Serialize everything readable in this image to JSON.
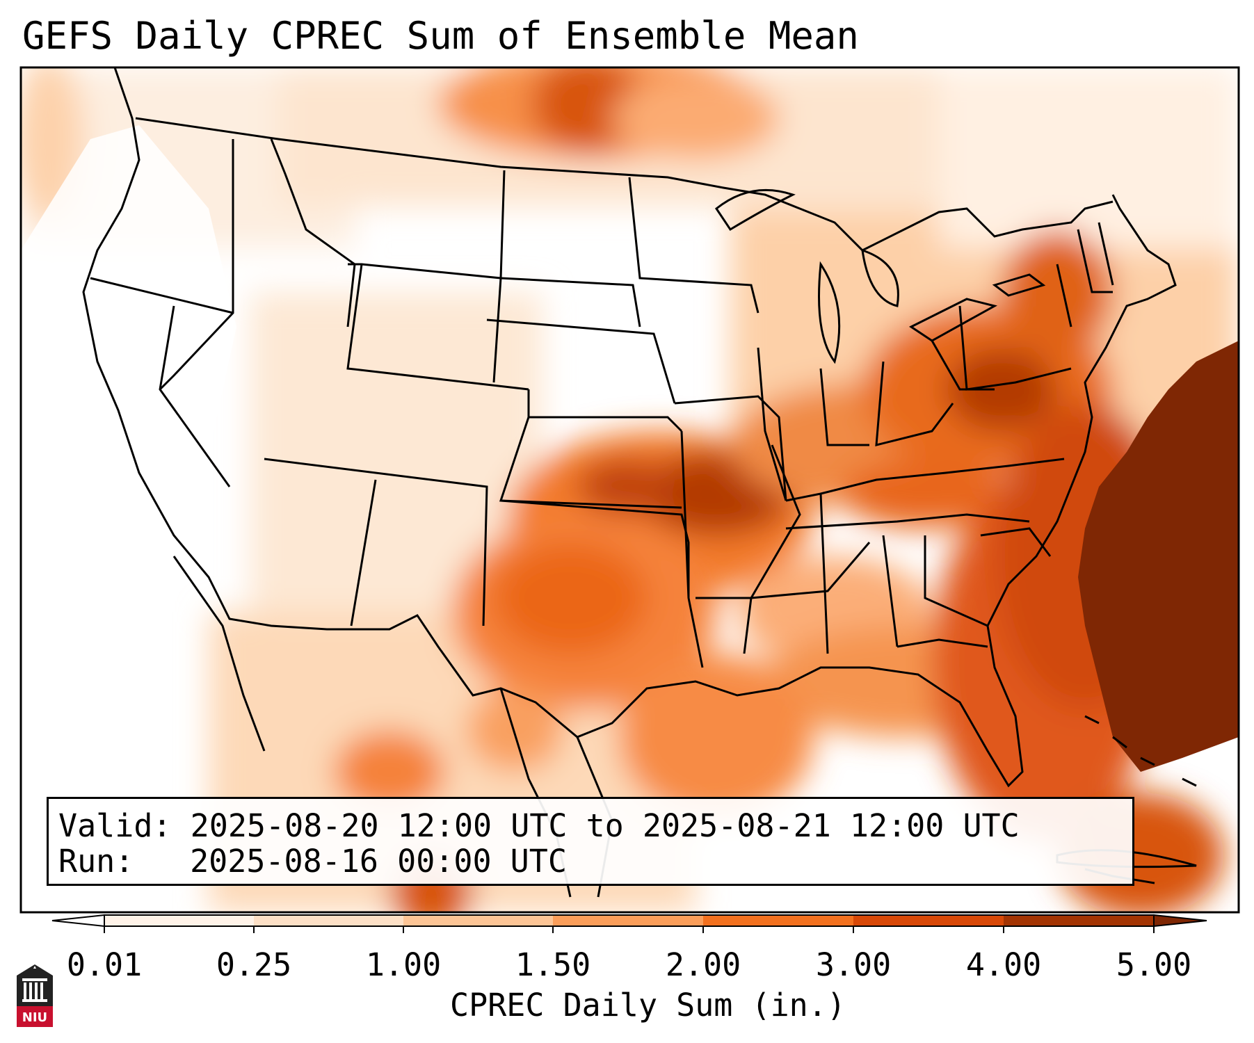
{
  "title": "GEFS Daily CPREC Sum of Ensemble Mean",
  "valid_label": "Valid:",
  "valid_value": "2025-08-20 12:00 UTC to 2025-08-21 12:00 UTC",
  "run_label": "Run:",
  "run_value": "2025-08-16 00:00 UTC",
  "colorbar": {
    "label": "CPREC Daily Sum (in.)",
    "ticks": [
      "0.01",
      "0.25",
      "1.00",
      "1.50",
      "2.00",
      "3.00",
      "4.00",
      "5.00"
    ],
    "colors": [
      "#fff3e8",
      "#fde0c6",
      "#fdc596",
      "#fb9e5a",
      "#f3711f",
      "#d84908",
      "#a33403"
    ],
    "under_color": "#ffffff",
    "over_color": "#7f2704"
  },
  "logo_text": "NIU"
}
